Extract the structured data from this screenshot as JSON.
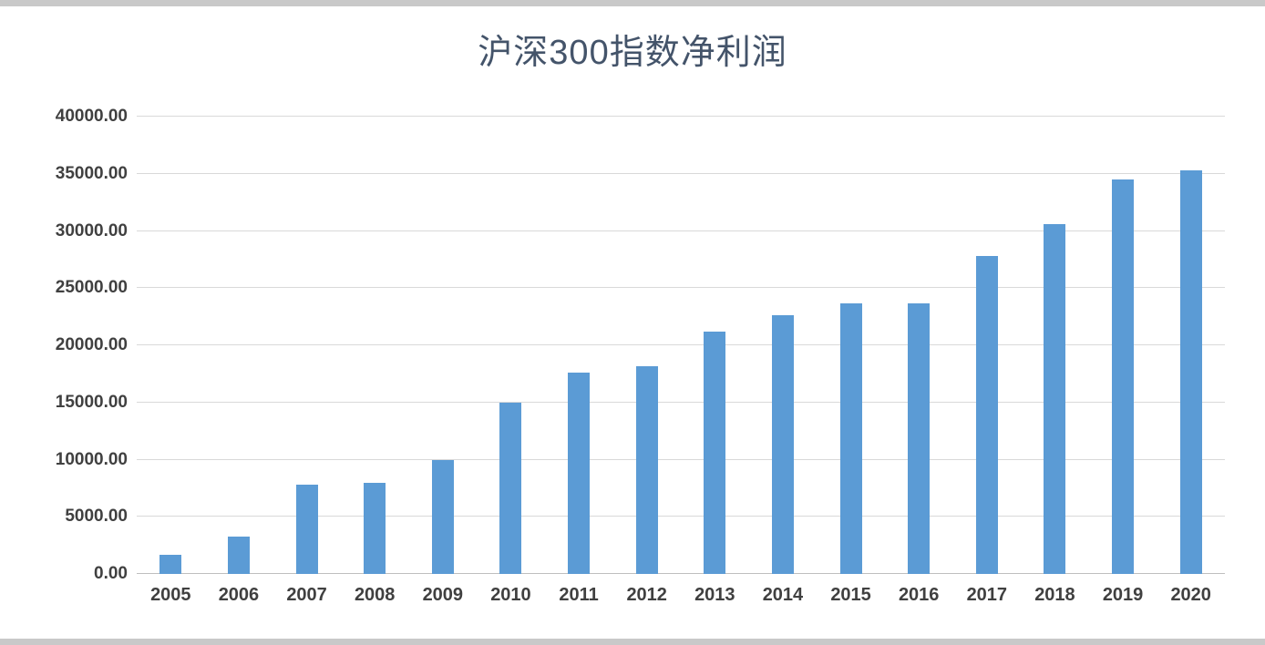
{
  "chart_data": {
    "type": "bar",
    "title": "沪深300指数净利润",
    "categories": [
      "2005",
      "2006",
      "2007",
      "2008",
      "2009",
      "2010",
      "2011",
      "2012",
      "2013",
      "2014",
      "2015",
      "2016",
      "2017",
      "2018",
      "2019",
      "2020"
    ],
    "values": [
      1700,
      3300,
      7800,
      8000,
      10000,
      15000,
      17600,
      18200,
      21200,
      22600,
      23700,
      23700,
      27800,
      30600,
      34500,
      35300
    ],
    "xlabel": "",
    "ylabel": "",
    "ylim": [
      0,
      40000
    ],
    "ytick_step": 5000,
    "ytick_labels": [
      "0.00",
      "5000.00",
      "10000.00",
      "15000.00",
      "20000.00",
      "25000.00",
      "30000.00",
      "35000.00",
      "40000.00"
    ],
    "grid": true,
    "legend_position": "none",
    "colors": {
      "bar": "#5B9BD5",
      "title": "#44546A",
      "axis_text": "#404040",
      "gridline": "#D9D9D9",
      "baseline": "#BFBFBF",
      "page_edge": "#C9C9C9"
    }
  }
}
